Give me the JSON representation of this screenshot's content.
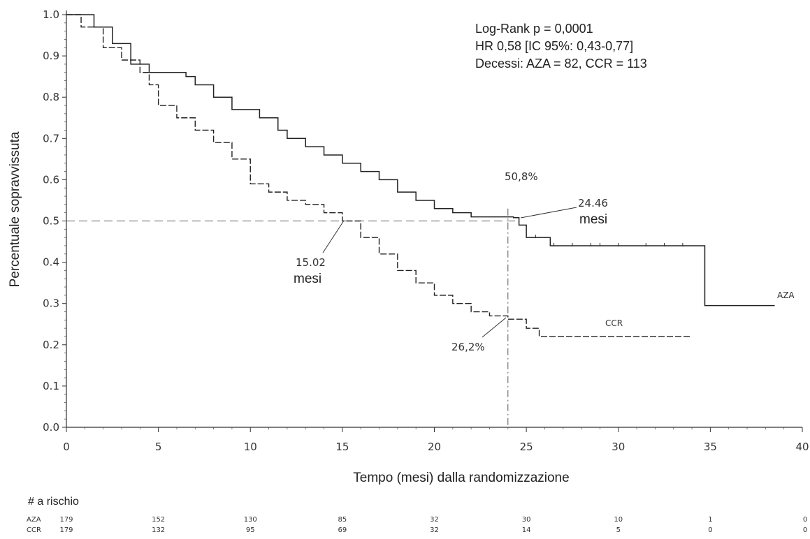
{
  "chart_data": {
    "type": "line",
    "subtype": "kaplan-meier",
    "xlabel": "Tempo (mesi) dalla randomizzazione",
    "ylabel": "Percentuale sopravvissuta",
    "xlim": [
      0,
      40
    ],
    "ylim": [
      0.0,
      1.0
    ],
    "x_ticks": [
      "0",
      "5",
      "10",
      "15",
      "20",
      "25",
      "30",
      "35",
      "40"
    ],
    "y_ticks": [
      "0.0",
      "0.1",
      "0.2",
      "0.3",
      "0.4",
      "0.5",
      "0.6",
      "0.7",
      "0.8",
      "0.9",
      "1.0"
    ],
    "grid": false,
    "stats_text": [
      "Log-Rank p = 0,0001",
      "HR 0,58 [IC 95%: 0,43-0,77]",
      "Decessi: AZA = 82, CCR = 113"
    ],
    "reference_lines": {
      "y": 0.5,
      "x": 24
    },
    "series": [
      {
        "name": "AZA",
        "style": "solid",
        "color": "#222222",
        "x": [
          0,
          1.5,
          2.5,
          3.5,
          4.5,
          6.5,
          7.0,
          8.0,
          9.0,
          10.5,
          11.5,
          12.0,
          13.0,
          14.0,
          15.0,
          16.0,
          17.0,
          18.0,
          19.0,
          20.0,
          21.0,
          22.0,
          23.0,
          24.3,
          24.6,
          25.0,
          26.3,
          28.0,
          30.0,
          32.0,
          34.6,
          34.7,
          38.5
        ],
        "y": [
          1.0,
          0.97,
          0.93,
          0.88,
          0.86,
          0.85,
          0.83,
          0.8,
          0.77,
          0.75,
          0.72,
          0.7,
          0.68,
          0.66,
          0.64,
          0.62,
          0.6,
          0.57,
          0.55,
          0.53,
          0.52,
          0.51,
          0.51,
          0.508,
          0.49,
          0.46,
          0.44,
          0.44,
          0.44,
          0.44,
          0.44,
          0.295,
          0.295
        ],
        "censor_x": [
          25.5,
          26.5,
          27.5,
          28.5,
          29.0,
          30.0,
          31.5,
          32.5,
          33.5
        ]
      },
      {
        "name": "CCR",
        "style": "dashed",
        "color": "#222222",
        "x": [
          0,
          0.8,
          2.0,
          3.0,
          4.0,
          4.5,
          5.0,
          6.0,
          7.0,
          8.0,
          9.0,
          10.0,
          11.0,
          12.0,
          13.0,
          14.0,
          15.0,
          16.0,
          17.0,
          18.0,
          19.0,
          20.0,
          21.0,
          22.0,
          23.0,
          24.0,
          25.0,
          25.7,
          30.0,
          34.0
        ],
        "y": [
          1.0,
          0.97,
          0.92,
          0.89,
          0.86,
          0.83,
          0.78,
          0.75,
          0.72,
          0.69,
          0.65,
          0.59,
          0.57,
          0.55,
          0.54,
          0.52,
          0.5,
          0.46,
          0.42,
          0.38,
          0.35,
          0.32,
          0.3,
          0.28,
          0.27,
          0.262,
          0.24,
          0.22,
          0.22,
          0.22
        ]
      }
    ],
    "annotations": {
      "aza_24_pct": "50,8%",
      "ccr_24_pct": "26,2%",
      "ccr_median_value": "15.02",
      "ccr_median_unit": "mesi",
      "aza_median_value": "24.46",
      "aza_median_unit": "mesi"
    },
    "at_risk": {
      "title": "# a rischio",
      "rows": [
        {
          "label": "AZA",
          "values": [
            "179",
            "152",
            "130",
            "85",
            "32",
            "30",
            "10",
            "1",
            "0"
          ]
        },
        {
          "label": "CCR",
          "values": [
            "179",
            "132",
            "95",
            "69",
            "32",
            "14",
            "5",
            "0",
            "0"
          ]
        }
      ]
    }
  }
}
